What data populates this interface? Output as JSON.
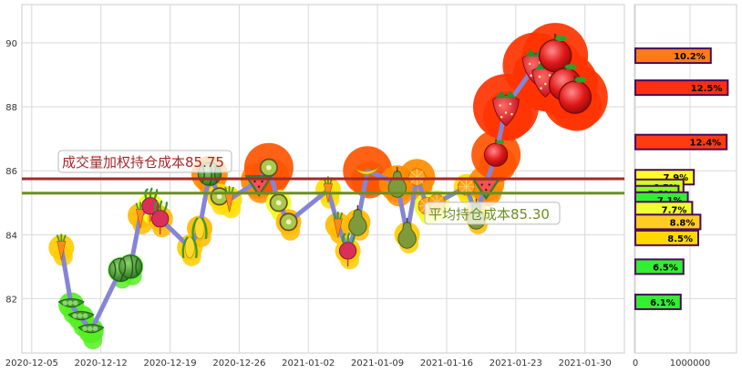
{
  "chart_data": [
    {
      "type": "line",
      "x_ticks": [
        "2020-12-05",
        "2020-12-12",
        "2020-12-19",
        "2020-12-26",
        "2021-01-02",
        "2021-01-09",
        "2021-01-16",
        "2021-01-23",
        "2021-01-30"
      ],
      "y_ticks": [
        "82",
        "84",
        "86",
        "88",
        "90"
      ],
      "xlim": [
        "2020-12-04",
        "2021-02-03"
      ],
      "ylim": [
        80.3,
        91.2
      ],
      "grid": true,
      "series": [
        {
          "dates": [
            "2020-12-08",
            "2020-12-09",
            "2020-12-10",
            "2020-12-11",
            "2020-12-14",
            "2020-12-15",
            "2020-12-16",
            "2020-12-17",
            "2020-12-18",
            "2020-12-21",
            "2020-12-22",
            "2020-12-23",
            "2020-12-24",
            "2020-12-25",
            "2020-12-28",
            "2020-12-29",
            "2020-12-30",
            "2020-12-31",
            "2021-01-04",
            "2021-01-05",
            "2021-01-06",
            "2021-01-07",
            "2021-01-08",
            "2021-01-11",
            "2021-01-12",
            "2021-01-13",
            "2021-01-14",
            "2021-01-15",
            "2021-01-18",
            "2021-01-19",
            "2021-01-20",
            "2021-01-21",
            "2021-01-22",
            "2021-01-25",
            "2021-01-26",
            "2021-01-27",
            "2021-01-28",
            "2021-01-29"
          ],
          "values": [
            83.6,
            81.8,
            81.4,
            81.0,
            82.9,
            83.0,
            84.6,
            84.9,
            84.5,
            83.6,
            84.2,
            85.9,
            85.2,
            85.1,
            85.7,
            86.1,
            85.0,
            84.4,
            85.4,
            84.3,
            83.5,
            84.4,
            86.0,
            85.6,
            84.0,
            85.8,
            84.9,
            85.0,
            85.5,
            84.6,
            85.6,
            86.5,
            88.0,
            89.3,
            88.9,
            89.6,
            88.7,
            88.3
          ]
        }
      ],
      "reference_lines": [
        {
          "label": "成交量加权持仓成本85.75",
          "value": 85.75,
          "color": "#a52a2a"
        },
        {
          "label": "平均持仓成本85.30",
          "value": 85.3,
          "color": "#6b8e23"
        }
      ]
    },
    {
      "type": "bar",
      "orientation": "horizontal",
      "x_ticks": [
        "0",
        "1000000"
      ],
      "xlim": [
        0,
        1850000
      ],
      "bars": [
        {
          "price": 89.6,
          "value": 1380000,
          "label": "10.2%",
          "color": "#ff7b1a"
        },
        {
          "price": 88.6,
          "value": 1690000,
          "label": "12.5%",
          "color": "#ff2f10"
        },
        {
          "price": 86.9,
          "value": 1670000,
          "label": "12.4%",
          "color": "#ff3b10"
        },
        {
          "price": 85.8,
          "value": 1070000,
          "label": "7.9%",
          "color": "#ffff22"
        },
        {
          "price": 85.5,
          "value": 880000,
          "label": "6.5%",
          "color": "#ccff22"
        },
        {
          "price": 85.3,
          "value": 790000,
          "label": "5.8%",
          "color": "#88ff22"
        },
        {
          "price": 85.1,
          "value": 960000,
          "label": "7.1%",
          "color": "#33ee33"
        },
        {
          "price": 84.8,
          "value": 1040000,
          "label": "7.7%",
          "color": "#eeff33"
        },
        {
          "price": 84.4,
          "value": 1190000,
          "label": "8.8%",
          "color": "#ffcc22"
        },
        {
          "price": 83.9,
          "value": 1150000,
          "label": "8.5%",
          "color": "#ffd700"
        },
        {
          "price": 83.0,
          "value": 880000,
          "label": "6.5%",
          "color": "#33ee33"
        },
        {
          "price": 81.9,
          "value": 830000,
          "label": "6.1%",
          "color": "#33ee33"
        }
      ]
    }
  ]
}
